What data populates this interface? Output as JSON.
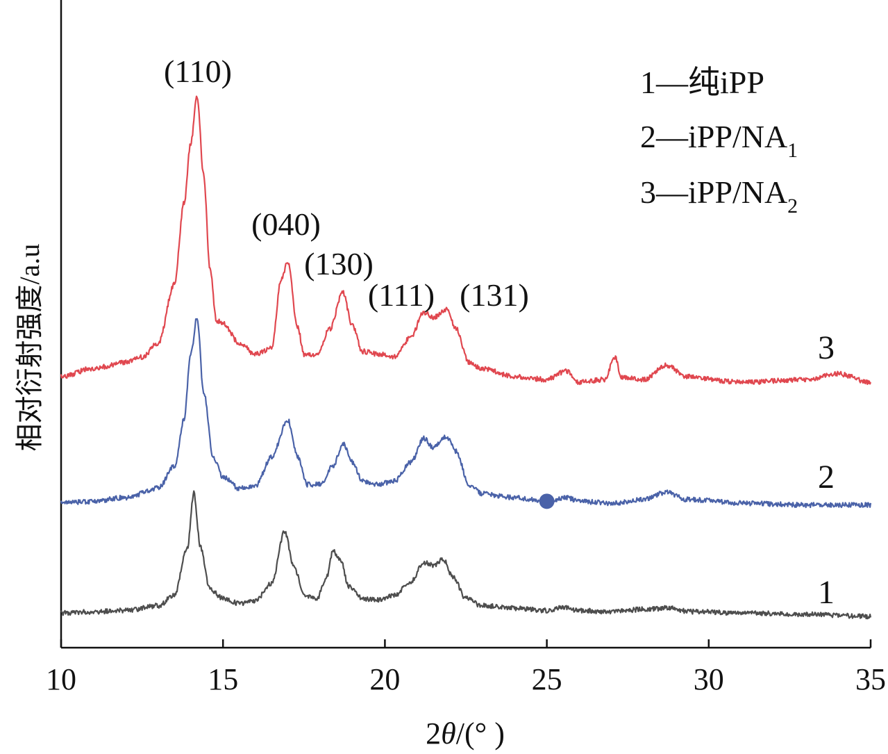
{
  "chart_data": {
    "type": "line",
    "xlabel": "2θ/(° )",
    "xlabel_parts": {
      "prefix": "2",
      "theta": "θ",
      "suffix": "/(° )"
    },
    "ylabel": "相对衍射强度/a.u",
    "xlim": [
      10,
      35
    ],
    "xticks": [
      "10",
      "15",
      "20",
      "25",
      "30",
      "35"
    ],
    "grid": false,
    "legend_position": "top-right",
    "legend": [
      {
        "num": "1",
        "dash": "—",
        "text": "纯iPP",
        "sub": ""
      },
      {
        "num": "2",
        "dash": "—",
        "text": "iPP/NA",
        "sub": "1"
      },
      {
        "num": "3",
        "dash": "—",
        "text": "iPP/NA",
        "sub": "2"
      }
    ],
    "peak_labels": [
      {
        "text": "(110)",
        "x": 14.2
      },
      {
        "text": "(040)",
        "x": 17.0
      },
      {
        "text": "(130)",
        "x": 18.7
      },
      {
        "text": "(111)",
        "x": 21.2
      },
      {
        "text": "(131)",
        "x": 21.9
      }
    ],
    "series": [
      {
        "id": "1",
        "label": "1",
        "color": "#4d4d4d",
        "baseline": 0.0,
        "points": [
          [
            10,
            0.0
          ],
          [
            11,
            0.01
          ],
          [
            12,
            0.02
          ],
          [
            13,
            0.06
          ],
          [
            13.5,
            0.15
          ],
          [
            13.9,
            0.55
          ],
          [
            14.1,
            1.0
          ],
          [
            14.3,
            0.55
          ],
          [
            14.6,
            0.2
          ],
          [
            15,
            0.12
          ],
          [
            15.5,
            0.08
          ],
          [
            16,
            0.1
          ],
          [
            16.5,
            0.25
          ],
          [
            16.9,
            0.68
          ],
          [
            17.2,
            0.38
          ],
          [
            17.5,
            0.15
          ],
          [
            17.9,
            0.12
          ],
          [
            18.2,
            0.3
          ],
          [
            18.4,
            0.52
          ],
          [
            18.6,
            0.46
          ],
          [
            18.9,
            0.22
          ],
          [
            19.3,
            0.12
          ],
          [
            19.8,
            0.11
          ],
          [
            20.3,
            0.15
          ],
          [
            20.8,
            0.26
          ],
          [
            21.2,
            0.42
          ],
          [
            21.5,
            0.4
          ],
          [
            21.8,
            0.45
          ],
          [
            22.1,
            0.3
          ],
          [
            22.5,
            0.12
          ],
          [
            23,
            0.06
          ],
          [
            24,
            0.04
          ],
          [
            25,
            0.02
          ],
          [
            25.5,
            0.05
          ],
          [
            26,
            0.02
          ],
          [
            27,
            0.01
          ],
          [
            28,
            0.03
          ],
          [
            28.7,
            0.04
          ],
          [
            29.5,
            0.01
          ],
          [
            31,
            0.0
          ],
          [
            33,
            -0.01
          ],
          [
            35,
            -0.03
          ]
        ]
      },
      {
        "id": "2",
        "label": "2",
        "color": "#4a62a8",
        "baseline": 0.0,
        "points": [
          [
            10,
            0.0
          ],
          [
            11,
            0.01
          ],
          [
            12,
            0.03
          ],
          [
            13,
            0.08
          ],
          [
            13.5,
            0.2
          ],
          [
            13.8,
            0.45
          ],
          [
            14.0,
            0.8
          ],
          [
            14.2,
            1.0
          ],
          [
            14.4,
            0.6
          ],
          [
            14.7,
            0.25
          ],
          [
            15,
            0.14
          ],
          [
            15.5,
            0.08
          ],
          [
            16,
            0.09
          ],
          [
            16.5,
            0.25
          ],
          [
            17.0,
            0.45
          ],
          [
            17.3,
            0.25
          ],
          [
            17.6,
            0.1
          ],
          [
            18,
            0.1
          ],
          [
            18.4,
            0.2
          ],
          [
            18.7,
            0.32
          ],
          [
            19.0,
            0.22
          ],
          [
            19.3,
            0.12
          ],
          [
            19.8,
            0.1
          ],
          [
            20.3,
            0.12
          ],
          [
            20.8,
            0.22
          ],
          [
            21.2,
            0.35
          ],
          [
            21.5,
            0.3
          ],
          [
            21.9,
            0.36
          ],
          [
            22.2,
            0.28
          ],
          [
            22.6,
            0.1
          ],
          [
            23,
            0.05
          ],
          [
            24,
            0.03
          ],
          [
            25,
            0.01
          ],
          [
            25.6,
            0.03
          ],
          [
            26,
            0.01
          ],
          [
            27,
            0.0
          ],
          [
            28,
            0.02
          ],
          [
            28.7,
            0.06
          ],
          [
            29.3,
            0.02
          ],
          [
            31,
            0.0
          ],
          [
            33,
            -0.01
          ],
          [
            35,
            -0.01
          ]
        ]
      },
      {
        "id": "3",
        "label": "3",
        "color": "#e0474f",
        "baseline": 0.0,
        "points": [
          [
            10,
            0.0
          ],
          [
            11,
            0.03
          ],
          [
            12,
            0.05
          ],
          [
            12.5,
            0.07
          ],
          [
            13,
            0.12
          ],
          [
            13.5,
            0.33
          ],
          [
            13.8,
            0.62
          ],
          [
            14.0,
            0.83
          ],
          [
            14.2,
            1.0
          ],
          [
            14.4,
            0.72
          ],
          [
            14.6,
            0.38
          ],
          [
            14.8,
            0.2
          ],
          [
            15,
            0.19
          ],
          [
            15.5,
            0.12
          ],
          [
            16,
            0.08
          ],
          [
            16.5,
            0.1
          ],
          [
            16.8,
            0.35
          ],
          [
            17.0,
            0.41
          ],
          [
            17.3,
            0.18
          ],
          [
            17.5,
            0.08
          ],
          [
            17.9,
            0.08
          ],
          [
            18.3,
            0.17
          ],
          [
            18.7,
            0.3
          ],
          [
            19.0,
            0.18
          ],
          [
            19.3,
            0.09
          ],
          [
            19.8,
            0.08
          ],
          [
            20.3,
            0.07
          ],
          [
            20.8,
            0.14
          ],
          [
            21.2,
            0.23
          ],
          [
            21.5,
            0.21
          ],
          [
            21.9,
            0.24
          ],
          [
            22.2,
            0.17
          ],
          [
            22.6,
            0.05
          ],
          [
            23,
            0.03
          ],
          [
            24,
            0.0
          ],
          [
            25,
            -0.01
          ],
          [
            25.6,
            0.02
          ],
          [
            26,
            -0.02
          ],
          [
            26.8,
            -0.01
          ],
          [
            27.1,
            0.07
          ],
          [
            27.3,
            0.0
          ],
          [
            28,
            -0.01
          ],
          [
            28.7,
            0.04
          ],
          [
            29.3,
            0.0
          ],
          [
            31,
            -0.02
          ],
          [
            33,
            -0.01
          ],
          [
            34,
            0.01
          ],
          [
            35,
            -0.02
          ]
        ]
      }
    ],
    "markers": [
      {
        "series": "2",
        "x": 25.0,
        "color": "#4a62a8"
      }
    ]
  }
}
